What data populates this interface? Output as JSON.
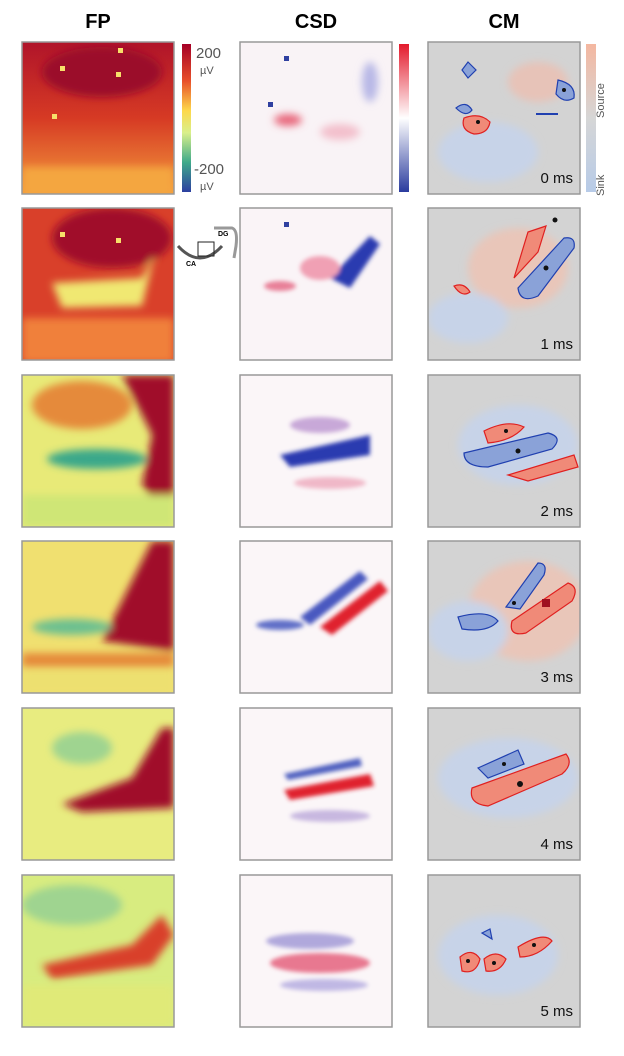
{
  "headers": [
    "FP",
    "CSD",
    "CM"
  ],
  "fp_colorbar": {
    "max": "200",
    "max_unit": "µV",
    "min": "-200",
    "min_unit": "µV"
  },
  "cm_colorbar": {
    "top": "Source",
    "bottom": "Sink"
  },
  "inset": {
    "top": "DG",
    "bottom": "CA"
  },
  "time_labels": [
    "0 ms",
    "1 ms",
    "2 ms",
    "3 ms",
    "4 ms",
    "5 ms"
  ]
}
